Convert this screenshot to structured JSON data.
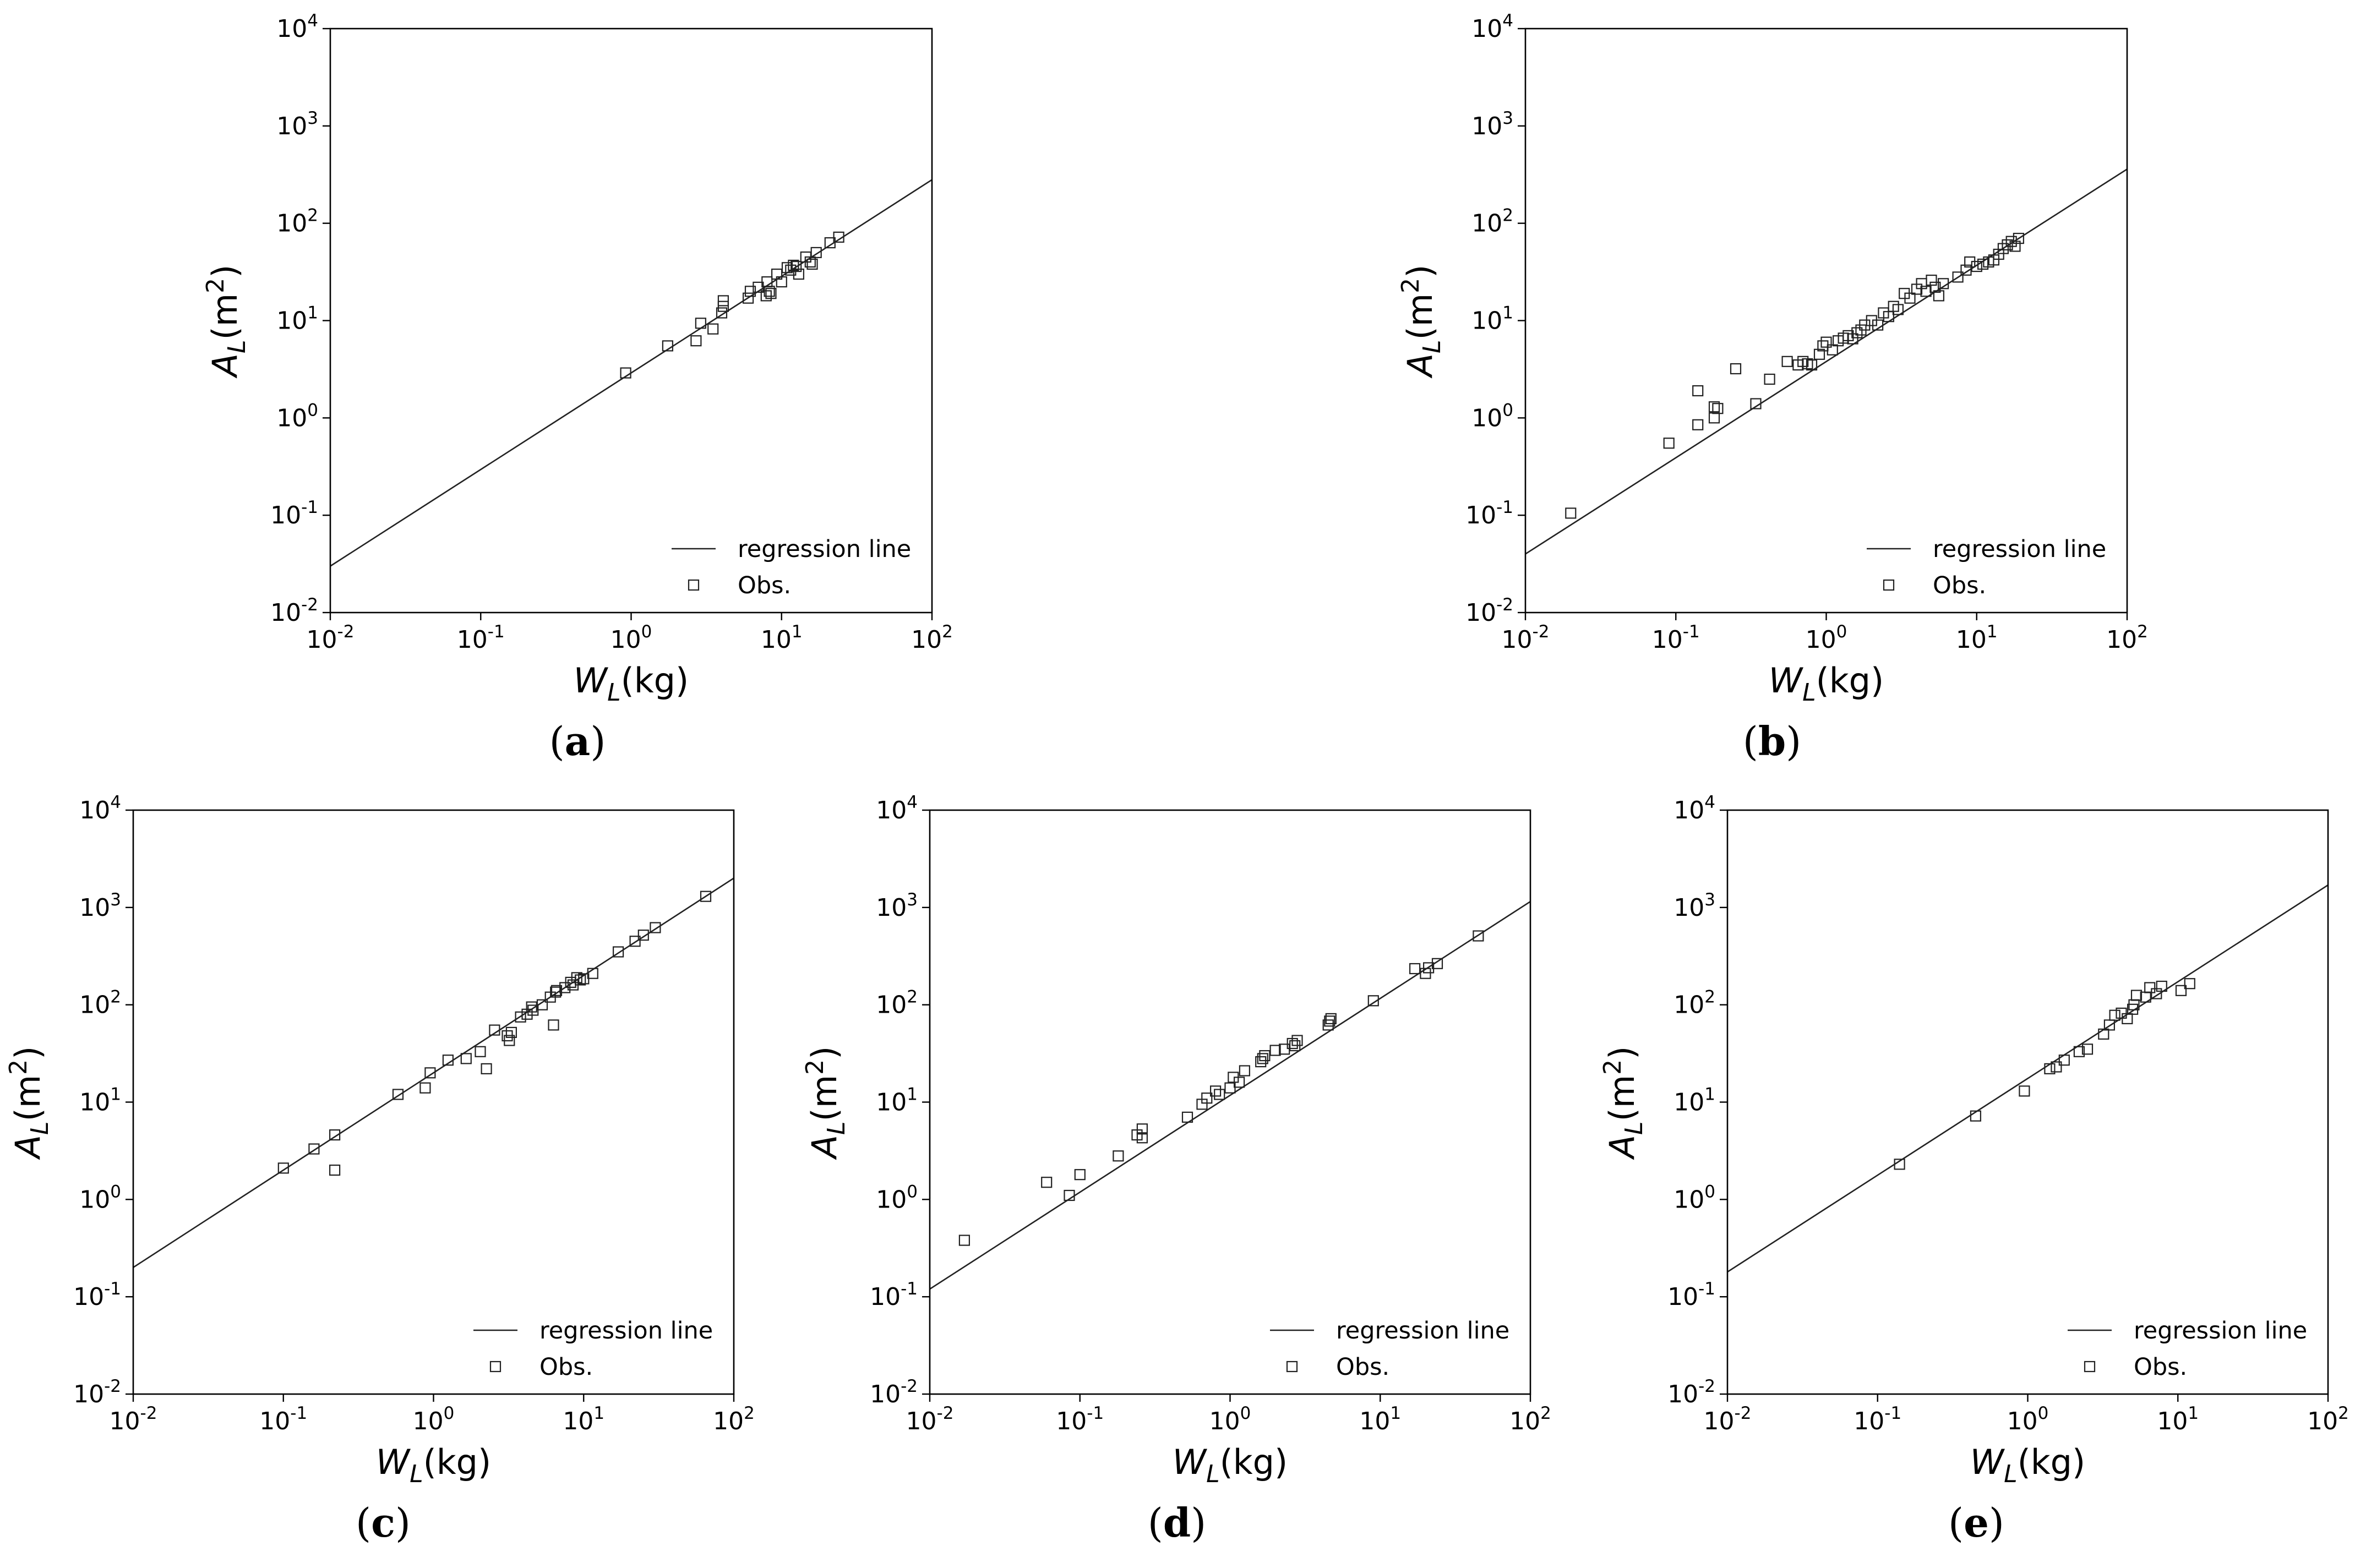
{
  "figure": {
    "legend_items": [
      "regression line",
      "Obs."
    ]
  },
  "chart_data": [
    {
      "panel": "a",
      "type": "scatter",
      "xlabel": "W_L(kg)",
      "ylabel": "A_L(m^2)",
      "xlim": [
        0.01,
        100
      ],
      "ylim": [
        0.01,
        10000
      ],
      "xscale": "log",
      "yscale": "log",
      "x_ticks": [
        "10^-2",
        "10^-1",
        "10^0",
        "10^1",
        "10^2"
      ],
      "y_ticks": [
        "10^-2",
        "10^-1",
        "10^0",
        "10^1",
        "10^2",
        "10^3",
        "10^4"
      ],
      "legend": {
        "entries": [
          "regression line",
          "Obs."
        ],
        "position": "lower-right"
      },
      "grid": false,
      "series": [
        {
          "name": "regression line",
          "kind": "line",
          "x": [
            0.01,
            100
          ],
          "y": [
            0.03,
            280
          ]
        },
        {
          "name": "Obs.",
          "kind": "points",
          "x": [
            0.92,
            1.75,
            2.7,
            2.9,
            3.5,
            4.0,
            4.1,
            4.1,
            6.0,
            6.2,
            7.0,
            7.9,
            8.0,
            8.3,
            8.5,
            9.3,
            10.0,
            10.9,
            11.5,
            12.0,
            12.5,
            13.0,
            14.5,
            15.5,
            16.0,
            17.0,
            21.0,
            24.0
          ],
          "y": [
            2.9,
            5.5,
            6.2,
            9.4,
            8.2,
            12.0,
            14.0,
            16.0,
            17.0,
            20.0,
            22.0,
            18.0,
            25.0,
            20.0,
            19.0,
            30.0,
            25.0,
            35.0,
            33.0,
            37.0,
            36.0,
            30.0,
            45.0,
            40.0,
            38.0,
            50.0,
            63.0,
            72.0
          ]
        }
      ]
    },
    {
      "panel": "b",
      "type": "scatter",
      "xlabel": "W_L(kg)",
      "ylabel": "A_L(m^2)",
      "xlim": [
        0.01,
        100
      ],
      "ylim": [
        0.01,
        10000
      ],
      "xscale": "log",
      "yscale": "log",
      "x_ticks": [
        "10^-2",
        "10^-1",
        "10^0",
        "10^1",
        "10^2"
      ],
      "y_ticks": [
        "10^-2",
        "10^-1",
        "10^0",
        "10^1",
        "10^2",
        "10^3",
        "10^4"
      ],
      "legend": {
        "entries": [
          "regression line",
          "Obs."
        ],
        "position": "lower-right"
      },
      "grid": false,
      "series": [
        {
          "name": "regression line",
          "kind": "line",
          "x": [
            0.01,
            100
          ],
          "y": [
            0.04,
            360
          ]
        },
        {
          "name": "Obs.",
          "kind": "points",
          "x": [
            0.02,
            0.09,
            0.14,
            0.14,
            0.18,
            0.18,
            0.19,
            0.25,
            0.34,
            0.42,
            0.55,
            0.65,
            0.7,
            0.75,
            0.8,
            0.9,
            0.95,
            1.0,
            1.1,
            1.2,
            1.3,
            1.4,
            1.5,
            1.6,
            1.7,
            1.8,
            2.0,
            2.2,
            2.4,
            2.6,
            2.8,
            3.0,
            3.3,
            3.6,
            4.0,
            4.3,
            4.6,
            5.0,
            5.3,
            5.6,
            6.0,
            7.5,
            8.5,
            9.0,
            10.0,
            11.0,
            12.0,
            13.0,
            14.0,
            15.0,
            16.0,
            17.0,
            18.0,
            19.0
          ],
          "y": [
            0.105,
            0.55,
            0.85,
            1.9,
            1.0,
            1.3,
            1.25,
            3.2,
            1.4,
            2.5,
            3.8,
            3.5,
            3.8,
            3.6,
            3.5,
            4.5,
            5.5,
            6.0,
            5.0,
            6.2,
            6.6,
            7.0,
            6.5,
            7.5,
            8.0,
            9.0,
            10.0,
            9.0,
            12.0,
            11.0,
            14.0,
            13.0,
            19.0,
            17.0,
            21.0,
            24.0,
            20.0,
            26.0,
            22.0,
            18.0,
            24.0,
            28.0,
            33.0,
            40.0,
            36.0,
            38.0,
            40.0,
            42.0,
            48.0,
            55.0,
            60.0,
            65.0,
            58.0,
            70.0
          ]
        }
      ]
    },
    {
      "panel": "c",
      "type": "scatter",
      "xlabel": "W_L(kg)",
      "ylabel": "A_L(m^2)",
      "xlim": [
        0.01,
        100
      ],
      "ylim": [
        0.01,
        10000
      ],
      "xscale": "log",
      "yscale": "log",
      "x_ticks": [
        "10^-2",
        "10^-1",
        "10^0",
        "10^1",
        "10^2"
      ],
      "y_ticks": [
        "10^-2",
        "10^-1",
        "10^0",
        "10^1",
        "10^2",
        "10^3",
        "10^4"
      ],
      "legend": {
        "entries": [
          "regression line",
          "Obs."
        ],
        "position": "lower-right"
      },
      "grid": false,
      "series": [
        {
          "name": "regression line",
          "kind": "line",
          "x": [
            0.01,
            100
          ],
          "y": [
            0.2,
            2000
          ]
        },
        {
          "name": "Obs.",
          "kind": "points",
          "x": [
            0.1,
            0.16,
            0.22,
            0.22,
            0.58,
            0.88,
            0.95,
            1.25,
            1.65,
            2.05,
            2.25,
            2.55,
            3.1,
            3.2,
            3.3,
            3.8,
            4.2,
            4.5,
            4.6,
            5.3,
            6.0,
            6.3,
            6.5,
            6.6,
            7.5,
            8.2,
            8.5,
            9.0,
            9.5,
            10.0,
            11.5,
            17.0,
            22.0,
            25.0,
            30.0,
            65.0
          ],
          "y": [
            2.1,
            3.3,
            4.6,
            2.0,
            12.0,
            14.0,
            20.0,
            27.0,
            28.0,
            33.0,
            22.0,
            55.0,
            48.0,
            43.0,
            52.0,
            75.0,
            80.0,
            95.0,
            88.0,
            100.0,
            120.0,
            62.0,
            135.0,
            140.0,
            150.0,
            170.0,
            160.0,
            190.0,
            180.0,
            185.0,
            210.0,
            350.0,
            450.0,
            520.0,
            620.0,
            1300.0
          ]
        }
      ]
    },
    {
      "panel": "d",
      "type": "scatter",
      "xlabel": "W_L(kg)",
      "ylabel": "A_L(m^2)",
      "xlim": [
        0.01,
        100
      ],
      "ylim": [
        0.01,
        10000
      ],
      "xscale": "log",
      "yscale": "log",
      "x_ticks": [
        "10^-2",
        "10^-1",
        "10^0",
        "10^1",
        "10^2"
      ],
      "y_ticks": [
        "10^-2",
        "10^-1",
        "10^0",
        "10^1",
        "10^2",
        "10^3",
        "10^4"
      ],
      "legend": {
        "entries": [
          "regression line",
          "Obs."
        ],
        "position": "lower-right"
      },
      "grid": false,
      "series": [
        {
          "name": "regression line",
          "kind": "line",
          "x": [
            0.01,
            100
          ],
          "y": [
            0.12,
            1150
          ]
        },
        {
          "name": "Obs.",
          "kind": "points",
          "x": [
            0.017,
            0.06,
            0.085,
            0.1,
            0.18,
            0.24,
            0.26,
            0.26,
            0.52,
            0.65,
            0.7,
            0.8,
            0.85,
            1.0,
            1.05,
            1.15,
            1.25,
            1.6,
            1.65,
            1.7,
            2.0,
            2.3,
            2.6,
            2.7,
            2.8,
            4.5,
            4.6,
            4.7,
            9.0,
            17.0,
            20.0,
            21.0,
            24.0,
            45.0
          ],
          "y": [
            0.38,
            1.5,
            1.1,
            1.8,
            2.8,
            4.6,
            4.3,
            5.3,
            7.0,
            9.5,
            11.0,
            13.0,
            12.0,
            14.0,
            18.0,
            16.0,
            21.0,
            26.0,
            28.0,
            30.0,
            34.0,
            35.0,
            40.0,
            38.0,
            43.0,
            62.0,
            68.0,
            72.0,
            110.0,
            235.0,
            210.0,
            240.0,
            265.0,
            510.0
          ]
        }
      ]
    },
    {
      "panel": "e",
      "type": "scatter",
      "xlabel": "W_L(kg)",
      "ylabel": "A_L(m^2)",
      "xlim": [
        0.01,
        100
      ],
      "ylim": [
        0.01,
        10000
      ],
      "xscale": "log",
      "yscale": "log",
      "x_ticks": [
        "10^-2",
        "10^-1",
        "10^0",
        "10^1",
        "10^2"
      ],
      "y_ticks": [
        "10^-2",
        "10^-1",
        "10^0",
        "10^1",
        "10^2",
        "10^3",
        "10^4"
      ],
      "legend": {
        "entries": [
          "regression line",
          "Obs."
        ],
        "position": "lower-right"
      },
      "grid": false,
      "series": [
        {
          "name": "regression line",
          "kind": "line",
          "x": [
            0.01,
            100
          ],
          "y": [
            0.18,
            1700
          ]
        },
        {
          "name": "Obs.",
          "kind": "points",
          "x": [
            0.14,
            0.45,
            0.95,
            1.4,
            1.55,
            1.75,
            2.2,
            2.5,
            3.2,
            3.5,
            3.8,
            4.2,
            4.6,
            5.0,
            5.1,
            5.3,
            6.1,
            6.5,
            7.2,
            7.8,
            10.5,
            12.0
          ],
          "y": [
            2.3,
            7.2,
            13.0,
            22.0,
            23.0,
            27.0,
            33.0,
            35.0,
            50.0,
            62.0,
            78.0,
            82.0,
            72.0,
            90.0,
            100.0,
            125.0,
            120.0,
            150.0,
            130.0,
            155.0,
            140.0,
            165.0
          ]
        }
      ]
    }
  ]
}
